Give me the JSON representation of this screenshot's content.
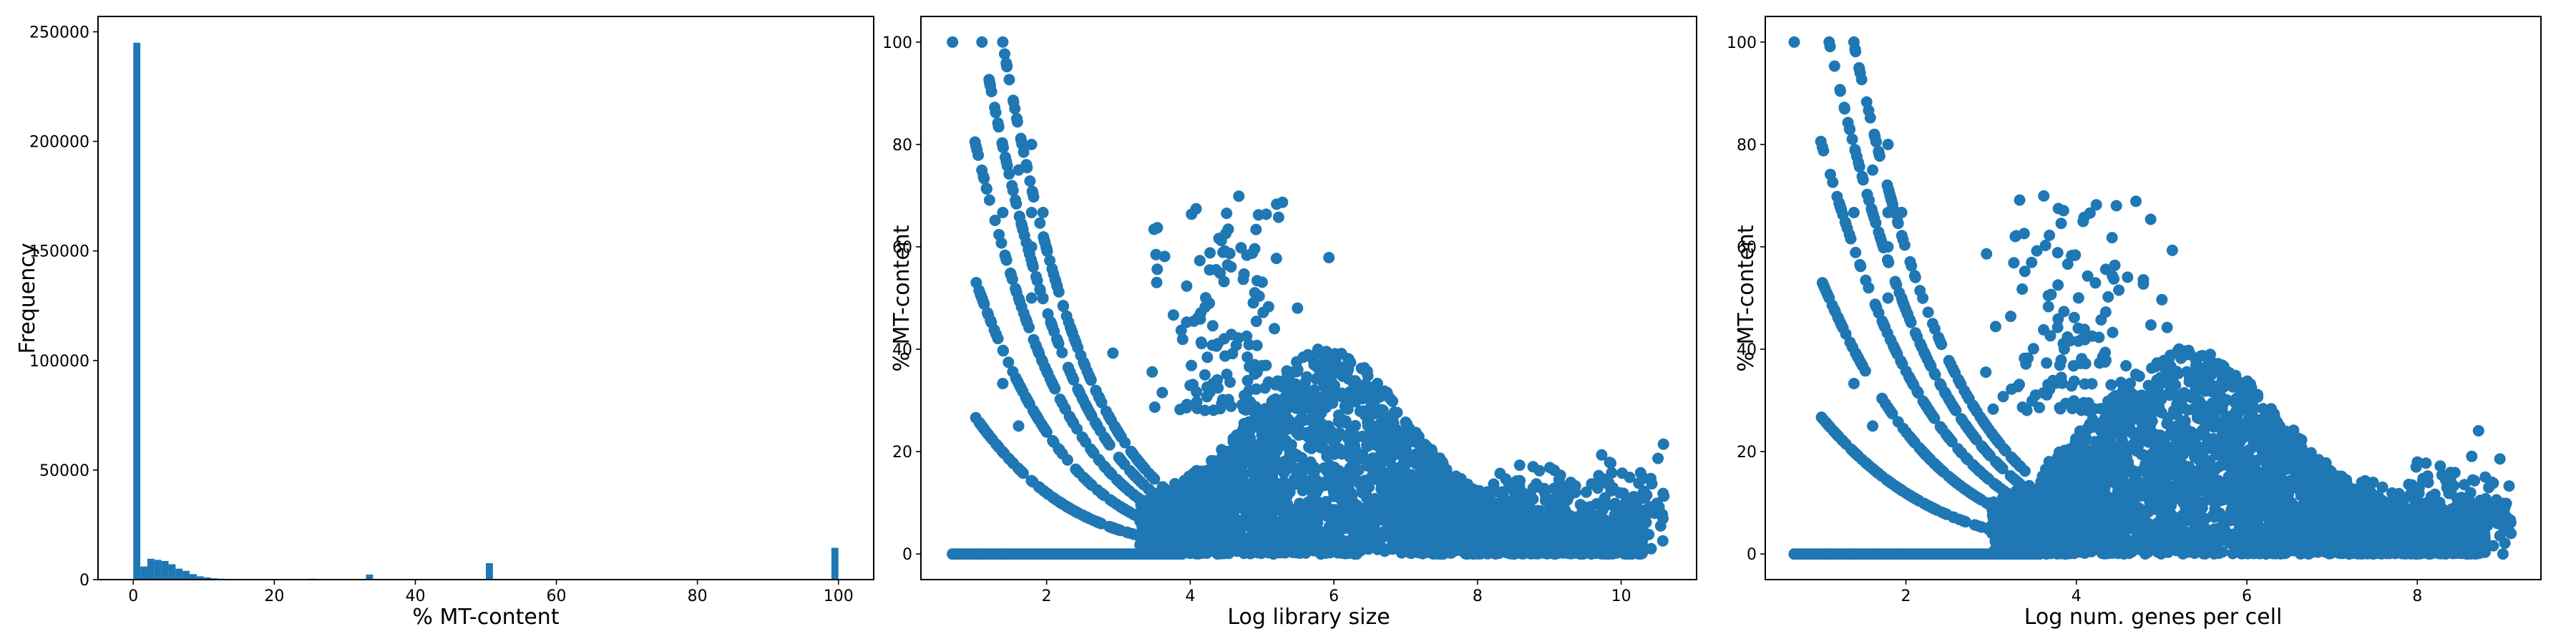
{
  "colors": {
    "series": "#1f77b4",
    "axes": "#000000",
    "background": "#ffffff"
  },
  "chart_data": [
    {
      "type": "bar",
      "subtype": "histogram",
      "xlabel": "% MT-content",
      "ylabel": "Frequency",
      "xlim": [
        -5,
        105
      ],
      "ylim": [
        0,
        257000
      ],
      "xticks": [
        0,
        20,
        40,
        60,
        80,
        100
      ],
      "yticks": [
        0,
        50000,
        100000,
        150000,
        200000,
        250000
      ],
      "bin_width": 1,
      "bin_starts": [
        0,
        1,
        2,
        3,
        4,
        5,
        6,
        7,
        8,
        9,
        10,
        11,
        12,
        13,
        14,
        25,
        33,
        50,
        99
      ],
      "values": [
        245000,
        6000,
        9500,
        9000,
        8500,
        7000,
        5000,
        4000,
        2500,
        1500,
        1000,
        600,
        400,
        200,
        100,
        400,
        2300,
        7500,
        14500
      ],
      "grid": false
    },
    {
      "type": "scatter",
      "xlabel": "Log library size",
      "ylabel": "% MT-content",
      "xlim": [
        0.25,
        11.05
      ],
      "ylim": [
        -5,
        105
      ],
      "xticks": [
        2,
        4,
        6,
        8,
        10
      ],
      "yticks": [
        0,
        20,
        40,
        60,
        80,
        100
      ],
      "grid": false
    },
    {
      "type": "scatter",
      "xlabel": "Log num. genes per cell",
      "ylabel": "% MT-content",
      "xlim": [
        0.35,
        9.45
      ],
      "ylim": [
        -5,
        105
      ],
      "xticks": [
        2,
        4,
        6,
        8
      ],
      "yticks": [
        0,
        20,
        40,
        60,
        80,
        100
      ],
      "grid": false
    }
  ]
}
